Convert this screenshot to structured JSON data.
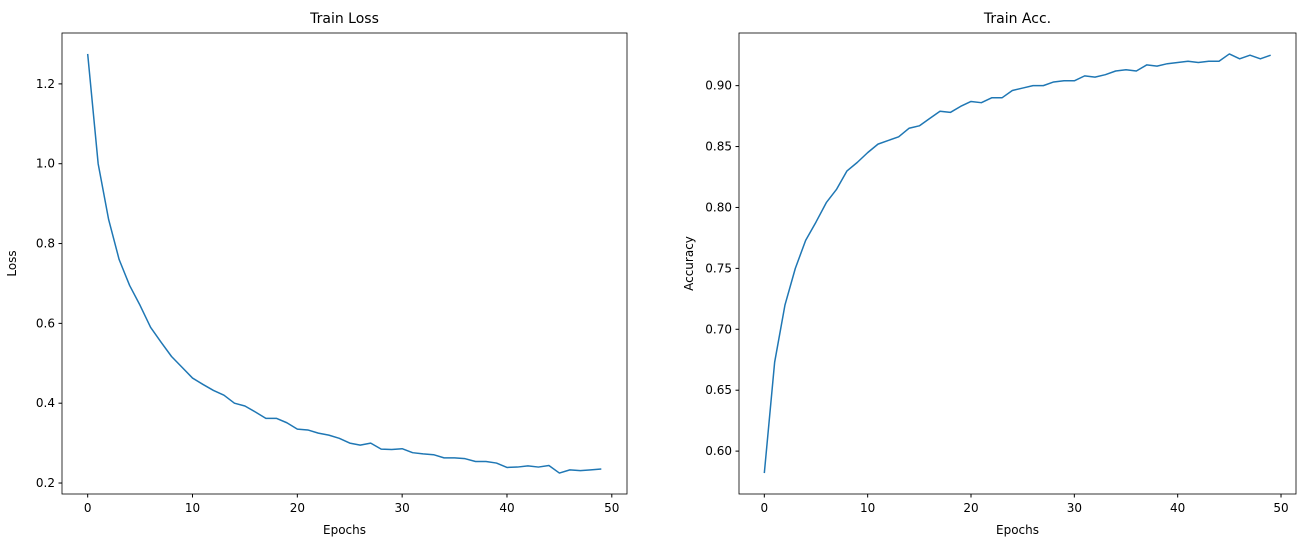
{
  "chart_data": [
    {
      "type": "line",
      "title": "Train Loss",
      "xlabel": "Epochs",
      "ylabel": "Loss",
      "color": "#1f77b4",
      "x": [
        0,
        1,
        2,
        3,
        4,
        5,
        6,
        7,
        8,
        9,
        10,
        11,
        12,
        13,
        14,
        15,
        16,
        17,
        18,
        19,
        20,
        21,
        22,
        23,
        24,
        25,
        26,
        27,
        28,
        29,
        30,
        31,
        32,
        33,
        34,
        35,
        36,
        37,
        38,
        39,
        40,
        41,
        42,
        43,
        44,
        45,
        46,
        47,
        48,
        49
      ],
      "values": [
        1.275,
        1.0,
        0.86,
        0.76,
        0.695,
        0.645,
        0.59,
        0.553,
        0.517,
        0.49,
        0.463,
        0.447,
        0.432,
        0.42,
        0.4,
        0.393,
        0.378,
        0.362,
        0.362,
        0.351,
        0.335,
        0.333,
        0.325,
        0.32,
        0.312,
        0.3,
        0.295,
        0.3,
        0.285,
        0.284,
        0.286,
        0.276,
        0.273,
        0.271,
        0.263,
        0.263,
        0.261,
        0.254,
        0.254,
        0.25,
        0.239,
        0.24,
        0.243,
        0.24,
        0.244,
        0.225,
        0.233,
        0.231,
        0.233,
        0.235
      ],
      "xlim": [
        -2.45,
        51.45
      ],
      "xticks": [
        0,
        10,
        20,
        30,
        40,
        50
      ],
      "ylim": [
        0.1725,
        1.3275
      ],
      "yticks": [
        0.2,
        0.4,
        0.6,
        0.8,
        {
          "value": 1,
          "label": "1.0"
        },
        1.2
      ],
      "grid": false
    },
    {
      "type": "line",
      "title": "Train Acc.",
      "xlabel": "Epochs",
      "ylabel": "Accuracy",
      "color": "#1f77b4",
      "x": [
        0,
        1,
        2,
        3,
        4,
        5,
        6,
        7,
        8,
        9,
        10,
        11,
        12,
        13,
        14,
        15,
        16,
        17,
        18,
        19,
        20,
        21,
        22,
        23,
        24,
        25,
        26,
        27,
        28,
        29,
        30,
        31,
        32,
        33,
        34,
        35,
        36,
        37,
        38,
        39,
        40,
        41,
        42,
        43,
        44,
        45,
        46,
        47,
        48,
        49
      ],
      "values": [
        0.582,
        0.673,
        0.72,
        0.75,
        0.773,
        0.788,
        0.804,
        0.815,
        0.83,
        0.837,
        0.845,
        0.852,
        0.855,
        0.858,
        0.865,
        0.867,
        0.873,
        0.879,
        0.878,
        0.883,
        0.887,
        0.886,
        0.89,
        0.89,
        0.896,
        0.898,
        0.9,
        0.9,
        0.903,
        0.904,
        0.904,
        0.908,
        0.907,
        0.909,
        0.912,
        0.913,
        0.912,
        0.917,
        0.916,
        0.918,
        0.919,
        0.92,
        0.919,
        0.92,
        0.92,
        0.926,
        0.922,
        0.925,
        0.922,
        0.925
      ],
      "xlim": [
        -2.45,
        51.45
      ],
      "xticks": [
        0,
        10,
        20,
        30,
        40,
        50
      ],
      "ylim": [
        0.5648,
        0.9432
      ],
      "yticks": [
        {
          "value": 0.6,
          "label": "0.60"
        },
        0.65,
        {
          "value": 0.7,
          "label": "0.70"
        },
        0.75,
        {
          "value": 0.8,
          "label": "0.80"
        },
        0.85,
        {
          "value": 0.9,
          "label": "0.90"
        }
      ],
      "grid": false
    }
  ]
}
